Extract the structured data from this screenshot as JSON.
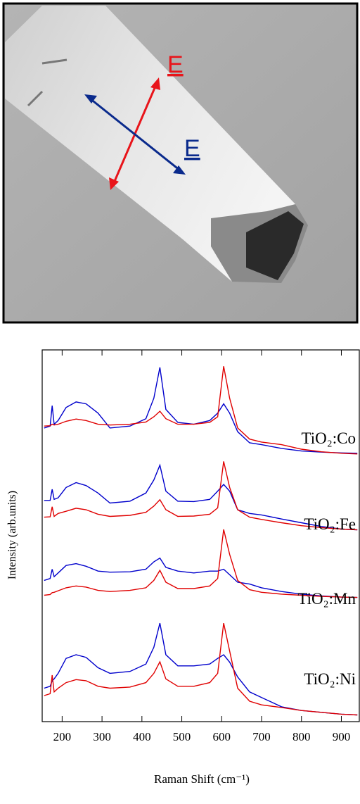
{
  "image": {
    "polarization_labels": [
      {
        "text": "E",
        "color": "#e8141a"
      },
      {
        "text": "E",
        "color": "#0a2a8c"
      }
    ]
  },
  "chart_data": {
    "type": "line",
    "x_label": "Raman Shift (cm⁻¹)",
    "y_label": "Intensity (arb.units)",
    "xlim": [
      150,
      945
    ],
    "ylim": [
      0,
      100
    ],
    "xticks": [
      200,
      300,
      400,
      500,
      600,
      700,
      800,
      900
    ],
    "x": [
      155,
      170,
      175,
      180,
      190,
      210,
      235,
      260,
      290,
      320,
      370,
      410,
      430,
      445,
      460,
      490,
      530,
      570,
      590,
      605,
      620,
      640,
      670,
      700,
      750,
      800,
      850,
      900,
      940
    ],
    "samples": [
      {
        "label": "TiO₂:Co",
        "series": [
          {
            "color": "#0000cc",
            "values": [
              79,
              79.5,
              85,
              80,
              81,
              84.5,
              86,
              85.5,
              83,
              79,
              79.5,
              81.5,
              87,
              95.3,
              84,
              80.5,
              80,
              81,
              83,
              85.5,
              83,
              78,
              75,
              74.5,
              73.5,
              72.8,
              72.5,
              72.3,
              72.2
            ]
          },
          {
            "color": "#e00000",
            "values": [
              79.5,
              79.6,
              80,
              79.8,
              80,
              80.8,
              81.4,
              81,
              80,
              79.8,
              80,
              80.6,
              82,
              83.5,
              81.5,
              80,
              80,
              80.5,
              82,
              95.6,
              87,
              79,
              76,
              75.2,
              74.5,
              73.3,
              72.6,
              72.2,
              72
            ]
          }
        ]
      },
      {
        "label": "TiO₂:Fe",
        "series": [
          {
            "color": "#0000cc",
            "values": [
              59.5,
              59.5,
              62.5,
              59.8,
              60.2,
              63,
              64.3,
              63.5,
              61.5,
              58.8,
              59.3,
              61.5,
              65,
              69,
              62,
              59.3,
              59.2,
              59.8,
              62,
              63.8,
              62,
              57,
              56,
              55.6,
              54.5,
              53.5,
              52.5,
              51.8,
              51.6
            ]
          },
          {
            "color": "#e00000",
            "values": [
              55,
              55.1,
              57.8,
              55.2,
              56,
              56.6,
              57.4,
              57,
              55.8,
              55.2,
              55.5,
              56.3,
              58,
              59.7,
              57,
              55.2,
              55.3,
              55.8,
              57.5,
              70,
              63,
              57,
              55,
              54.4,
              53.5,
              52.7,
              52.2,
              51.8,
              51.6
            ]
          }
        ]
      },
      {
        "label": "TiO₂:Mn",
        "series": [
          {
            "color": "#0000cc",
            "values": [
              38,
              38.5,
              41,
              39,
              40,
              42,
              42.5,
              41.8,
              40.5,
              40.2,
              40.3,
              41,
              43,
              44,
              41.5,
              40.5,
              40,
              40.5,
              40.5,
              41,
              39.5,
              37.5,
              37,
              36,
              35,
              34.3,
              33.8,
              33.5,
              33.4
            ]
          },
          {
            "color": "#e00000",
            "values": [
              34,
              34.2,
              34.7,
              34.8,
              35.2,
              36,
              36.5,
              36.2,
              35.3,
              35,
              35.3,
              36,
              38,
              40.7,
              37.5,
              35.8,
              35.8,
              36.5,
              38.5,
              51.7,
              45,
              38,
              35.5,
              34.8,
              34.3,
              34,
              33.7,
              33.5,
              33.4
            ]
          }
        ]
      },
      {
        "label": "TiO₂:Ni",
        "series": [
          {
            "color": "#0000cc",
            "values": [
              9,
              9.5,
              11,
              11.5,
              13,
              17,
              18,
              17.3,
              14.5,
              13,
              13.5,
              15.5,
              20,
              26.5,
              18,
              15,
              15,
              15.5,
              17,
              18,
              16,
              12,
              8,
              6.5,
              4,
              3,
              2.5,
              2,
              1.8
            ]
          },
          {
            "color": "#e00000",
            "values": [
              7,
              7.5,
              12.5,
              8,
              9,
              10.5,
              11.3,
              11,
              9.5,
              9,
              9.3,
              10.5,
              13,
              16.1,
              11.5,
              9.5,
              9.5,
              10.5,
              13,
              26.5,
              19,
              9,
              5.5,
              4.5,
              3.8,
              3,
              2.5,
              2,
              1.8
            ]
          }
        ]
      }
    ]
  }
}
